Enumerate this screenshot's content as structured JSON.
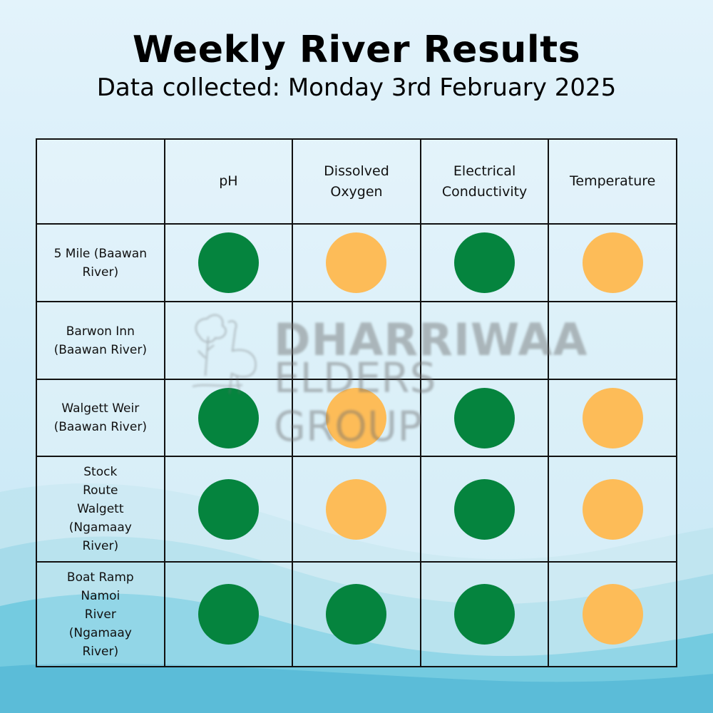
{
  "title": "Weekly River Results",
  "subtitle": "Data collected: Monday 3rd February 2025",
  "colors": {
    "good": "#05843e",
    "fair": "#fdbc58"
  },
  "table": {
    "columns": [
      "",
      "pH",
      "Dissolved Oxygen",
      "Electrical Conductivity",
      "Temperature"
    ],
    "rows": [
      {
        "site": "5 Mile (Baawan River)",
        "ratings": [
          "good",
          "fair",
          "good",
          "fair"
        ]
      },
      {
        "site": "Barwon Inn (Baawan River)",
        "ratings": [
          "",
          "",
          "",
          ""
        ]
      },
      {
        "site": "Walgett Weir (Baawan River)",
        "ratings": [
          "good",
          "fair",
          "good",
          "fair"
        ]
      },
      {
        "site": "Stock Route Walgett (Ngamaay River)",
        "ratings": [
          "good",
          "fair",
          "good",
          "fair"
        ]
      },
      {
        "site": "Boat Ramp Namoi River (Ngamaay River)",
        "ratings": [
          "good",
          "good",
          "good",
          "fair"
        ]
      }
    ]
  },
  "watermark": {
    "line1": "DHARRIWAA",
    "line2": "ELDERS GROUP"
  }
}
